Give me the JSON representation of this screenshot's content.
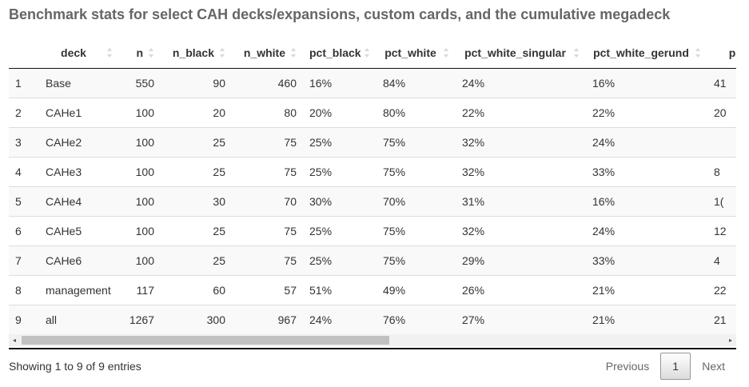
{
  "title": "Benchmark stats for select CAH decks/expansions, custom cards, and the cumulative megadeck",
  "columns": [
    "",
    "deck",
    "n",
    "n_black",
    "n_white",
    "pct_black",
    "pct_white",
    "pct_white_singular",
    "pct_white_gerund",
    "p"
  ],
  "rows": [
    {
      "idx": "1",
      "deck": "Base",
      "n": "550",
      "n_black": "90",
      "n_white": "460",
      "pct_black": "16%",
      "pct_white": "84%",
      "pct_white_singular": "24%",
      "pct_white_gerund": "16%",
      "extra": "41"
    },
    {
      "idx": "2",
      "deck": "CAHe1",
      "n": "100",
      "n_black": "20",
      "n_white": "80",
      "pct_black": "20%",
      "pct_white": "80%",
      "pct_white_singular": "22%",
      "pct_white_gerund": "22%",
      "extra": "20"
    },
    {
      "idx": "3",
      "deck": "CAHe2",
      "n": "100",
      "n_black": "25",
      "n_white": "75",
      "pct_black": "25%",
      "pct_white": "75%",
      "pct_white_singular": "32%",
      "pct_white_gerund": "24%",
      "extra": ""
    },
    {
      "idx": "4",
      "deck": "CAHe3",
      "n": "100",
      "n_black": "25",
      "n_white": "75",
      "pct_black": "25%",
      "pct_white": "75%",
      "pct_white_singular": "32%",
      "pct_white_gerund": "33%",
      "extra": "8"
    },
    {
      "idx": "5",
      "deck": "CAHe4",
      "n": "100",
      "n_black": "30",
      "n_white": "70",
      "pct_black": "30%",
      "pct_white": "70%",
      "pct_white_singular": "31%",
      "pct_white_gerund": "16%",
      "extra": "1("
    },
    {
      "idx": "6",
      "deck": "CAHe5",
      "n": "100",
      "n_black": "25",
      "n_white": "75",
      "pct_black": "25%",
      "pct_white": "75%",
      "pct_white_singular": "32%",
      "pct_white_gerund": "24%",
      "extra": "12"
    },
    {
      "idx": "7",
      "deck": "CAHe6",
      "n": "100",
      "n_black": "25",
      "n_white": "75",
      "pct_black": "25%",
      "pct_white": "75%",
      "pct_white_singular": "29%",
      "pct_white_gerund": "33%",
      "extra": "4"
    },
    {
      "idx": "8",
      "deck": "management",
      "n": "117",
      "n_black": "60",
      "n_white": "57",
      "pct_black": "51%",
      "pct_white": "49%",
      "pct_white_singular": "26%",
      "pct_white_gerund": "21%",
      "extra": "22"
    },
    {
      "idx": "9",
      "deck": "all",
      "n": "1267",
      "n_black": "300",
      "n_white": "967",
      "pct_black": "24%",
      "pct_white": "76%",
      "pct_white_singular": "27%",
      "pct_white_gerund": "21%",
      "extra": "21"
    }
  ],
  "info": "Showing 1 to 9 of 9 entries",
  "pagination": {
    "previous": "Previous",
    "current": "1",
    "next": "Next"
  },
  "scrollbar": {
    "left_arrow": "◂",
    "right_arrow": "▸"
  },
  "colors": {
    "title": "#666666",
    "stripe": "#f9f9f9",
    "rule": "#111111"
  }
}
